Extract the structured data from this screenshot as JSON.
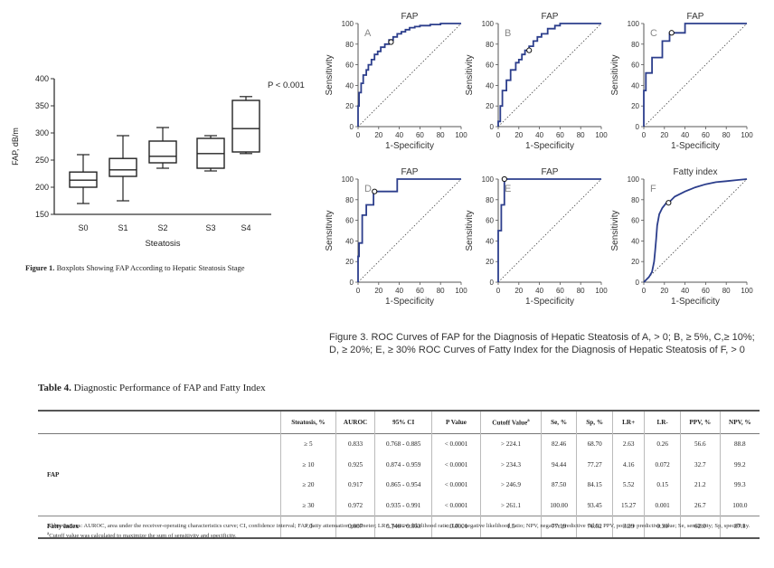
{
  "figure1": {
    "caption_label": "Figure 1.",
    "caption_text": "Boxplots Showing FAP According to Hepatic Steatosis Stage",
    "chart_data": {
      "type": "box",
      "ylabel": "FAP, dB/m",
      "xlabel": "Steatosis",
      "ylim": [
        150,
        400
      ],
      "yticks": [
        150,
        200,
        250,
        300,
        350,
        400
      ],
      "annotation": "P < 0.001",
      "categories": [
        "S0",
        "S1",
        "S2",
        "S3",
        "S4"
      ],
      "boxes": [
        {
          "min": 170,
          "q1": 200,
          "median": 213,
          "q3": 228,
          "max": 260
        },
        {
          "min": 175,
          "q1": 220,
          "median": 232,
          "q3": 253,
          "max": 295
        },
        {
          "min": 235,
          "q1": 245,
          "median": 257,
          "q3": 285,
          "max": 310
        },
        {
          "min": 230,
          "q1": 235,
          "median": 262,
          "q3": 290,
          "max": 295
        },
        {
          "min": 262,
          "q1": 265,
          "median": 308,
          "q3": 360,
          "max": 367
        }
      ]
    }
  },
  "figure3": {
    "caption": "Figure 3. ROC Curves of FAP for the Diagnosis of Hepatic Steatosis of A, > 0; B, ≥ 5%, C,≥ 10%; D, ≥ 20%; E, ≥ 30% ROC Curves of Fatty Index for the Diagnosis of Hepatic Steatosis of F, > 0",
    "chart_data": [
      {
        "type": "line",
        "title": "FAP",
        "panel": "A",
        "xlabel": "1-Specificity",
        "ylabel": "Sensitivity",
        "xlim": [
          0,
          100
        ],
        "ylim": [
          0,
          100
        ],
        "ticks": [
          0,
          20,
          40,
          60,
          80,
          100
        ],
        "x": [
          0,
          0,
          1,
          1,
          3,
          3,
          5,
          5,
          8,
          8,
          10,
          10,
          13,
          13,
          16,
          16,
          19,
          19,
          22,
          22,
          26,
          26,
          30,
          30,
          34,
          34,
          38,
          38,
          42,
          42,
          46,
          46,
          50,
          50,
          55,
          55,
          60,
          60,
          70,
          70,
          80,
          80,
          100,
          100
        ],
        "y": [
          0,
          20,
          20,
          33,
          33,
          42,
          42,
          50,
          50,
          55,
          55,
          60,
          60,
          65,
          65,
          70,
          70,
          73,
          73,
          77,
          77,
          80,
          80,
          84,
          84,
          87,
          87,
          90,
          90,
          92,
          92,
          94,
          94,
          96,
          96,
          97,
          97,
          98,
          98,
          99,
          99,
          100,
          100,
          100
        ],
        "cutoff": [
          32,
          82
        ]
      },
      {
        "type": "line",
        "title": "FAP",
        "panel": "B",
        "xlabel": "1-Specificity",
        "ylabel": "Sensitivity",
        "xlim": [
          0,
          100
        ],
        "ylim": [
          0,
          100
        ],
        "ticks": [
          0,
          20,
          40,
          60,
          80,
          100
        ],
        "x": [
          0,
          0,
          2,
          2,
          4,
          4,
          8,
          8,
          12,
          12,
          17,
          17,
          20,
          20,
          23,
          23,
          26,
          26,
          30,
          30,
          34,
          34,
          38,
          38,
          42,
          42,
          48,
          48,
          55,
          55,
          60,
          60,
          100,
          100
        ],
        "y": [
          0,
          5,
          5,
          20,
          20,
          35,
          35,
          45,
          45,
          55,
          55,
          62,
          62,
          65,
          65,
          70,
          70,
          74,
          74,
          78,
          78,
          83,
          83,
          87,
          87,
          90,
          90,
          95,
          95,
          98,
          98,
          100,
          100,
          100
        ],
        "cutoff": [
          30,
          74
        ]
      },
      {
        "type": "line",
        "title": "FAP",
        "panel": "C",
        "xlabel": "1-Specificity",
        "ylabel": "Sensitivity",
        "xlim": [
          0,
          100
        ],
        "ylim": [
          0,
          100
        ],
        "ticks": [
          0,
          20,
          40,
          60,
          80,
          100
        ],
        "x": [
          0,
          0,
          2,
          2,
          8,
          8,
          18,
          18,
          25,
          25,
          40,
          40,
          100
        ],
        "y": [
          0,
          35,
          35,
          52,
          52,
          67,
          67,
          83,
          83,
          91,
          91,
          100,
          100
        ],
        "cutoff": [
          27,
          91
        ]
      },
      {
        "type": "line",
        "title": "FAP",
        "panel": "D",
        "xlabel": "1-Specificity",
        "ylabel": "Sensitivity",
        "xlim": [
          0,
          100
        ],
        "ylim": [
          0,
          100
        ],
        "ticks": [
          0,
          20,
          40,
          60,
          80,
          100
        ],
        "x": [
          0,
          0,
          1,
          1,
          4,
          4,
          8,
          8,
          15,
          15,
          38,
          38,
          100
        ],
        "y": [
          0,
          25,
          25,
          38,
          38,
          65,
          65,
          75,
          75,
          88,
          88,
          100,
          100
        ],
        "cutoff": [
          16,
          88
        ]
      },
      {
        "type": "line",
        "title": "FAP",
        "panel": "E",
        "xlabel": "1-Specificity",
        "ylabel": "Sensitivity",
        "xlim": [
          0,
          100
        ],
        "ylim": [
          0,
          100
        ],
        "ticks": [
          0,
          20,
          40,
          60,
          80,
          100
        ],
        "x": [
          0,
          0,
          3,
          3,
          6,
          6,
          100
        ],
        "y": [
          0,
          50,
          50,
          75,
          75,
          100,
          100
        ],
        "cutoff": [
          6,
          100
        ]
      },
      {
        "type": "line",
        "title": "Fatty index",
        "panel": "F",
        "xlabel": "1-Specificity",
        "ylabel": "Sensitivity",
        "xlim": [
          0,
          100
        ],
        "ylim": [
          0,
          100
        ],
        "ticks": [
          0,
          20,
          40,
          60,
          80,
          100
        ],
        "x": [
          0,
          5,
          8,
          10,
          11,
          12,
          13,
          15,
          18,
          22,
          25,
          30,
          40,
          50,
          60,
          70,
          80,
          90,
          100
        ],
        "y": [
          0,
          5,
          10,
          20,
          30,
          42,
          55,
          66,
          72,
          77,
          78,
          83,
          88,
          92,
          95,
          97,
          98,
          99,
          100
        ],
        "cutoff": [
          24,
          77
        ]
      }
    ]
  },
  "table4": {
    "title_bold": "Table 4.",
    "title_text": "Diagnostic Performance of FAP and Fatty Index",
    "headers": {
      "steatosis": "Steatosis, %",
      "auroc": "AUROC",
      "ci": "95% CI",
      "p": "P Value",
      "cutoff": "Cutoff Value",
      "cutoff_sup": "a",
      "se": "Se, %",
      "sp": "Sp, %",
      "lrp": "LR+",
      "lrn": "LR-",
      "ppv": "PPV, %",
      "npv": "NPV, %"
    },
    "group_fap": "FAP",
    "group_fatty": "Fatty index",
    "rows": [
      {
        "steatosis": "≥ 5",
        "auroc": "0.833",
        "ci": "0.768 - 0.885",
        "p": "< 0.0001",
        "cutoff": "> 224.1",
        "se": "82.46",
        "sp": "68.70",
        "lrp": "2.63",
        "lrn": "0.26",
        "ppv": "56.6",
        "npv": "88.8"
      },
      {
        "steatosis": "≥ 10",
        "auroc": "0.925",
        "ci": "0.874 - 0.959",
        "p": "< 0.0001",
        "cutoff": "> 234.3",
        "se": "94.44",
        "sp": "77.27",
        "lrp": "4.16",
        "lrn": "0.072",
        "ppv": "32.7",
        "npv": "99.2"
      },
      {
        "steatosis": "≥ 20",
        "auroc": "0.917",
        "ci": "0.865 - 0.954",
        "p": "< 0.0001",
        "cutoff": "> 246.9",
        "se": "87.50",
        "sp": "84.15",
        "lrp": "5.52",
        "lrn": "0.15",
        "ppv": "21.2",
        "npv": "99.3"
      },
      {
        "steatosis": "≥ 30",
        "auroc": "0.972",
        "ci": "0.935 - 0.991",
        "p": "< 0.0001",
        "cutoff": "> 261.1",
        "se": "100.00",
        "sp": "93.45",
        "lrp": "15.27",
        "lrn": "0.001",
        "ppv": "26.7",
        "npv": "100.0"
      },
      {
        "steatosis": "> 0",
        "auroc": "0.807",
        "ci": "0.740 - 0.863",
        "p": "< 0.0001",
        "cutoff": "1.5",
        "se": "77.19",
        "sp": "76.52",
        "lrp": "3.29",
        "lrn": "0.30",
        "ppv": "62.0",
        "npv": "87.1"
      }
    ],
    "footnote_abbrev": "Abbreviations: AUROC, area under the receiver-operating characteristics curve; CI, confidence interval; FAP, fatty attenuation parameter; LR+, positive likelihood ratio; LR-, negative likelihood ratio; NPV, negative predictive value; PPV, positive predictive value; Se, sensitivity; Sp, specificity.",
    "footnote_a_mark": "a",
    "footnote_a": "Cutoff value was calculated to maximize the sum of sensitivity and specificity."
  }
}
